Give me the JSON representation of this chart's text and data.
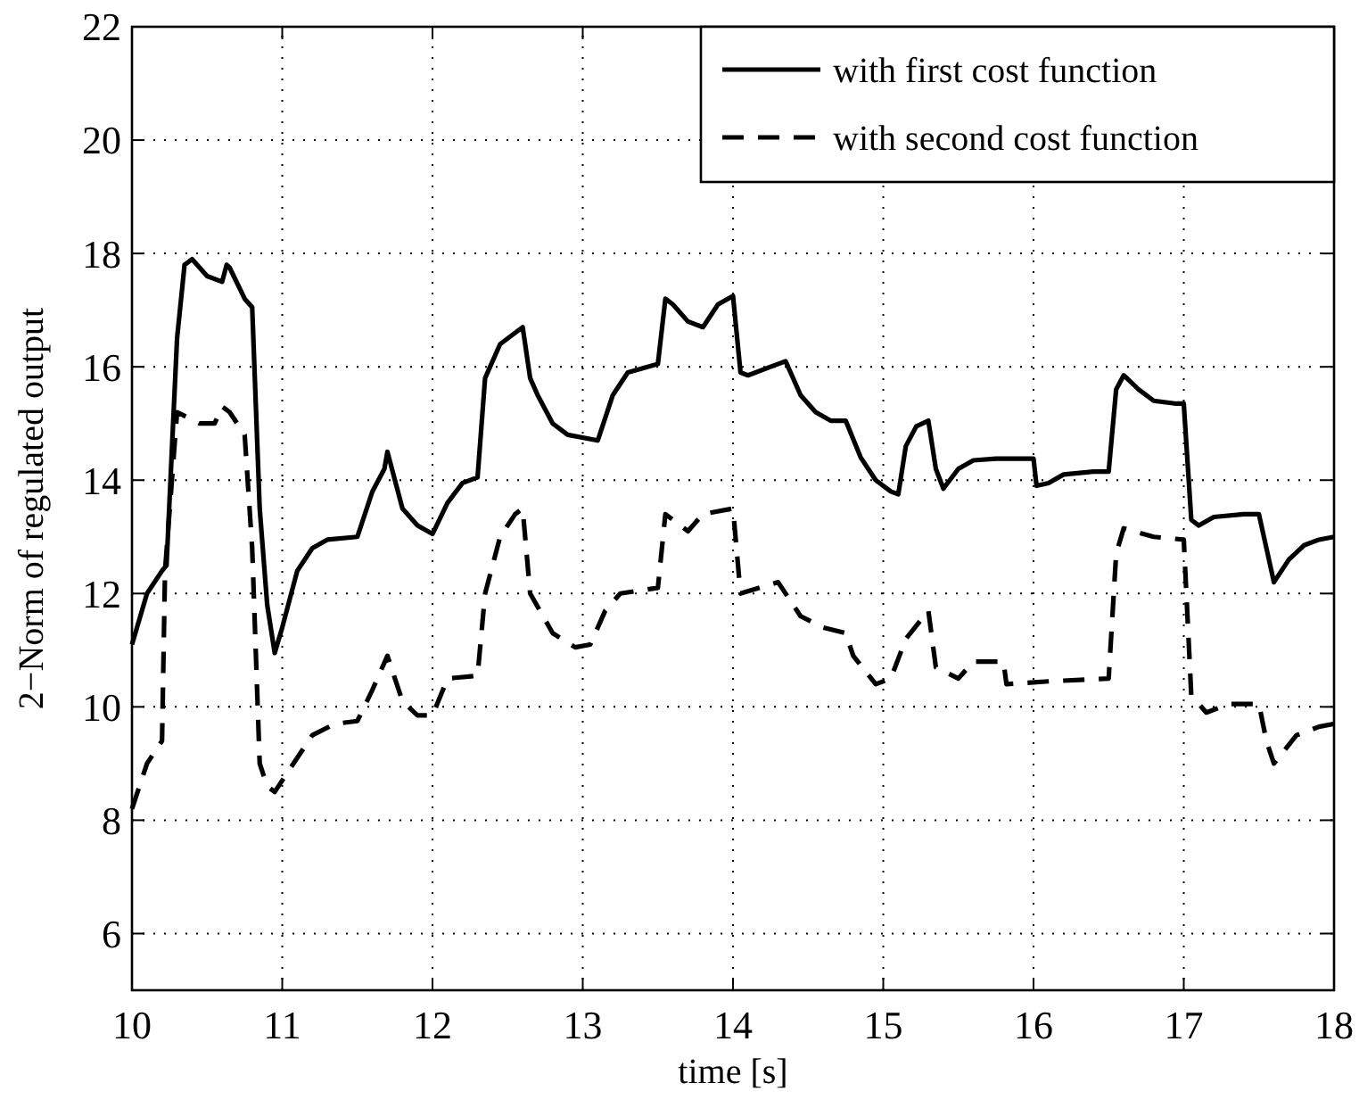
{
  "chart_data": {
    "type": "line",
    "xlabel": "time [s]",
    "ylabel": "2−Norm of regulated output",
    "xlim": [
      10,
      18
    ],
    "xticks": [
      10,
      11,
      12,
      13,
      14,
      15,
      16,
      17,
      18
    ],
    "ylim": [
      5,
      22
    ],
    "yticks": [
      6,
      8,
      10,
      12,
      14,
      16,
      18,
      20,
      22
    ],
    "grid": true,
    "legend": "top right",
    "series": [
      {
        "name": "with first cost function",
        "color": "#000000",
        "line_style": "solid",
        "x": [
          10.0,
          10.1,
          10.2,
          10.23,
          10.3,
          10.35,
          10.4,
          10.5,
          10.6,
          10.63,
          10.65,
          10.75,
          10.8,
          10.85,
          10.9,
          10.95,
          11.0,
          11.1,
          11.2,
          11.3,
          11.5,
          11.6,
          11.68,
          11.7,
          11.8,
          11.9,
          12.0,
          12.1,
          12.2,
          12.3,
          12.35,
          12.45,
          12.6,
          12.65,
          12.7,
          12.8,
          12.9,
          13.1,
          13.2,
          13.3,
          13.5,
          13.55,
          13.6,
          13.7,
          13.8,
          13.9,
          14.0,
          14.05,
          14.1,
          14.25,
          14.35,
          14.45,
          14.55,
          14.65,
          14.75,
          14.85,
          14.95,
          15.05,
          15.1,
          15.15,
          15.22,
          15.3,
          15.35,
          15.4,
          15.5,
          15.6,
          15.75,
          16.0,
          16.02,
          16.1,
          16.2,
          16.4,
          16.5,
          16.55,
          16.6,
          16.7,
          16.8,
          16.95,
          17.0,
          17.05,
          17.1,
          17.2,
          17.4,
          17.5,
          17.55,
          17.6,
          17.7,
          17.8,
          17.9,
          18.0
        ],
        "values": [
          11.1,
          12.0,
          12.4,
          12.5,
          16.5,
          17.8,
          17.9,
          17.6,
          17.5,
          17.8,
          17.75,
          17.2,
          17.05,
          13.5,
          11.8,
          10.95,
          11.4,
          12.4,
          12.8,
          12.95,
          13.0,
          13.8,
          14.2,
          14.5,
          13.5,
          13.2,
          13.05,
          13.6,
          13.95,
          14.05,
          15.8,
          16.4,
          16.7,
          15.8,
          15.5,
          15.0,
          14.8,
          14.7,
          15.5,
          15.9,
          16.05,
          17.2,
          17.1,
          16.8,
          16.7,
          17.1,
          17.25,
          15.9,
          15.85,
          16.0,
          16.1,
          15.5,
          15.2,
          15.05,
          15.05,
          14.4,
          14.0,
          13.8,
          13.75,
          14.6,
          14.95,
          15.05,
          14.2,
          13.85,
          14.2,
          14.35,
          14.38,
          14.38,
          13.9,
          13.95,
          14.1,
          14.15,
          14.15,
          15.6,
          15.85,
          15.6,
          15.4,
          15.35,
          15.35,
          13.3,
          13.2,
          13.35,
          13.4,
          13.4,
          12.8,
          12.2,
          12.6,
          12.85,
          12.95,
          13.0
        ]
      },
      {
        "name": "with second cost function",
        "color": "#000000",
        "line_style": "dashed",
        "x": [
          10.0,
          10.1,
          10.2,
          10.22,
          10.3,
          10.45,
          10.55,
          10.6,
          10.65,
          10.75,
          10.8,
          10.85,
          10.9,
          10.95,
          11.05,
          11.2,
          11.35,
          11.5,
          11.6,
          11.7,
          11.8,
          11.9,
          12.0,
          12.1,
          12.3,
          12.35,
          12.45,
          12.55,
          12.6,
          12.65,
          12.8,
          12.95,
          13.05,
          13.15,
          13.25,
          13.5,
          13.55,
          13.7,
          13.8,
          14.0,
          14.05,
          14.3,
          14.45,
          14.6,
          14.75,
          14.8,
          14.95,
          15.05,
          15.15,
          15.3,
          15.35,
          15.5,
          15.6,
          15.8,
          15.82,
          16.1,
          16.5,
          16.55,
          16.6,
          16.8,
          17.0,
          17.05,
          17.15,
          17.3,
          17.5,
          17.55,
          17.6,
          17.75,
          17.9,
          18.0
        ],
        "values": [
          8.2,
          9.0,
          9.4,
          12.4,
          15.2,
          15.0,
          15.0,
          15.3,
          15.2,
          14.8,
          12.8,
          9.0,
          8.6,
          8.5,
          8.9,
          9.5,
          9.7,
          9.75,
          10.3,
          10.9,
          10.1,
          9.85,
          9.85,
          10.5,
          10.55,
          12.0,
          13.0,
          13.4,
          13.5,
          12.0,
          11.3,
          11.05,
          11.1,
          11.7,
          12.0,
          12.1,
          13.4,
          13.1,
          13.4,
          13.5,
          12.0,
          12.2,
          11.6,
          11.4,
          11.3,
          10.9,
          10.4,
          10.5,
          11.2,
          11.7,
          10.7,
          10.5,
          10.8,
          10.8,
          10.4,
          10.45,
          10.5,
          12.7,
          13.15,
          13.0,
          12.95,
          10.2,
          9.9,
          10.05,
          10.05,
          9.4,
          9.0,
          9.5,
          9.65,
          9.7
        ]
      }
    ]
  }
}
